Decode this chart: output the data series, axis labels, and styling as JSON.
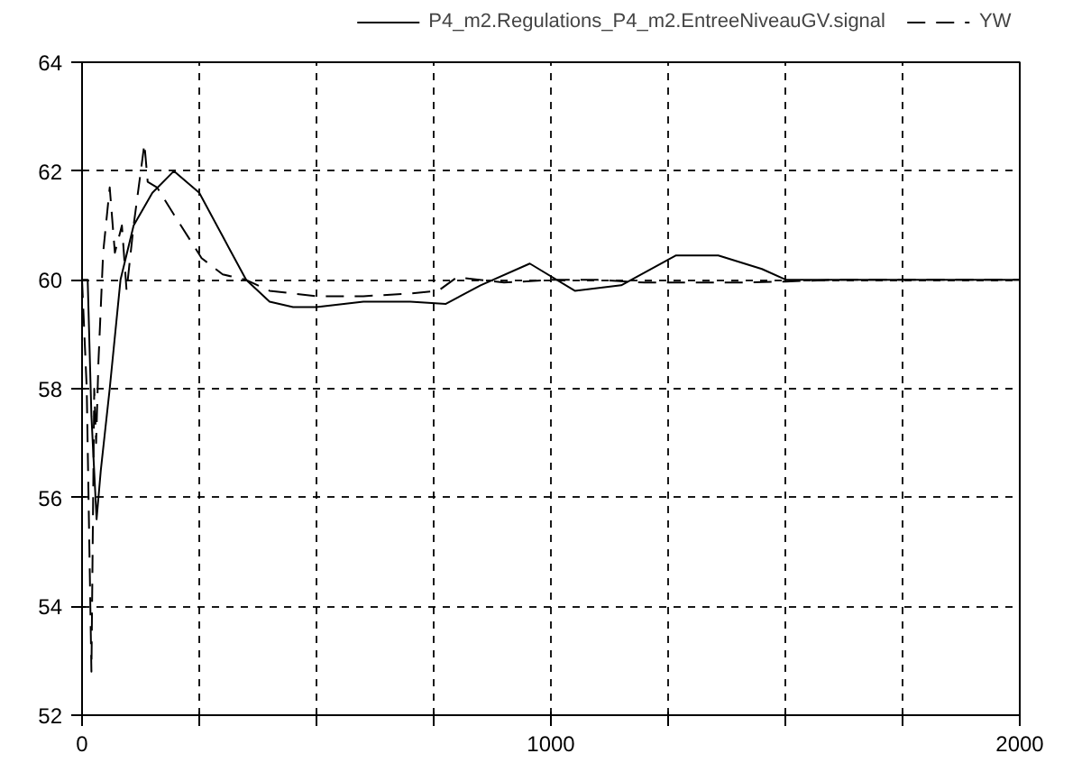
{
  "chart_data": {
    "type": "line",
    "legend": "top",
    "grid": true,
    "xlim": [
      0,
      2000
    ],
    "ylim": [
      52,
      64
    ],
    "xticks": [
      0,
      {
        "value": 250,
        "label": null
      },
      {
        "value": 500,
        "label": null
      },
      {
        "value": 750,
        "label": null
      },
      1000,
      {
        "value": 1250,
        "label": null
      },
      {
        "value": 1500,
        "label": null
      },
      {
        "value": 1750,
        "label": null
      },
      2000
    ],
    "yticks": [
      52,
      54,
      56,
      58,
      60,
      62,
      64
    ],
    "series": [
      {
        "name": "P4_m2.Regulations_P4_m2.EntreeNiveauGV.signal",
        "color": "#000000",
        "line_style": "solid",
        "x": [
          0,
          12,
          20,
          31,
          40,
          59,
          82,
          110,
          150,
          196,
          250,
          300,
          350,
          400,
          450,
          500,
          600,
          700,
          776,
          850,
          955,
          1051,
          1150,
          1267,
          1357,
          1450,
          1502,
          1600,
          2000
        ],
        "values": [
          60,
          60,
          57.5,
          55.6,
          56.5,
          58,
          60,
          61,
          61.6,
          62,
          61.6,
          60.8,
          60,
          59.6,
          59.5,
          59.5,
          59.6,
          59.6,
          59.56,
          59.9,
          60.3,
          59.8,
          59.9,
          60.45,
          60.45,
          60.2,
          60,
          60,
          60
        ]
      },
      {
        "name": "YW",
        "color": "#000000",
        "line_style": "dashed",
        "x": [
          0,
          10,
          20,
          26,
          30,
          35,
          45,
          59,
          70,
          85,
          95,
          110,
          133,
          140,
          160,
          196,
          255,
          300,
          350,
          400,
          500,
          600,
          700,
          760,
          800,
          900,
          1000,
          1100,
          1200,
          1300,
          1400,
          1500,
          1600,
          2000
        ],
        "values": [
          60,
          58,
          52.8,
          58,
          57,
          58.5,
          60.5,
          61.7,
          60.5,
          61,
          59.8,
          61,
          62.5,
          61.8,
          61.7,
          61.2,
          60.4,
          60.1,
          60,
          59.8,
          59.7,
          59.7,
          59.75,
          59.8,
          60.05,
          59.95,
          60,
          60,
          59.95,
          59.95,
          59.95,
          59.97,
          60,
          60
        ]
      }
    ]
  }
}
